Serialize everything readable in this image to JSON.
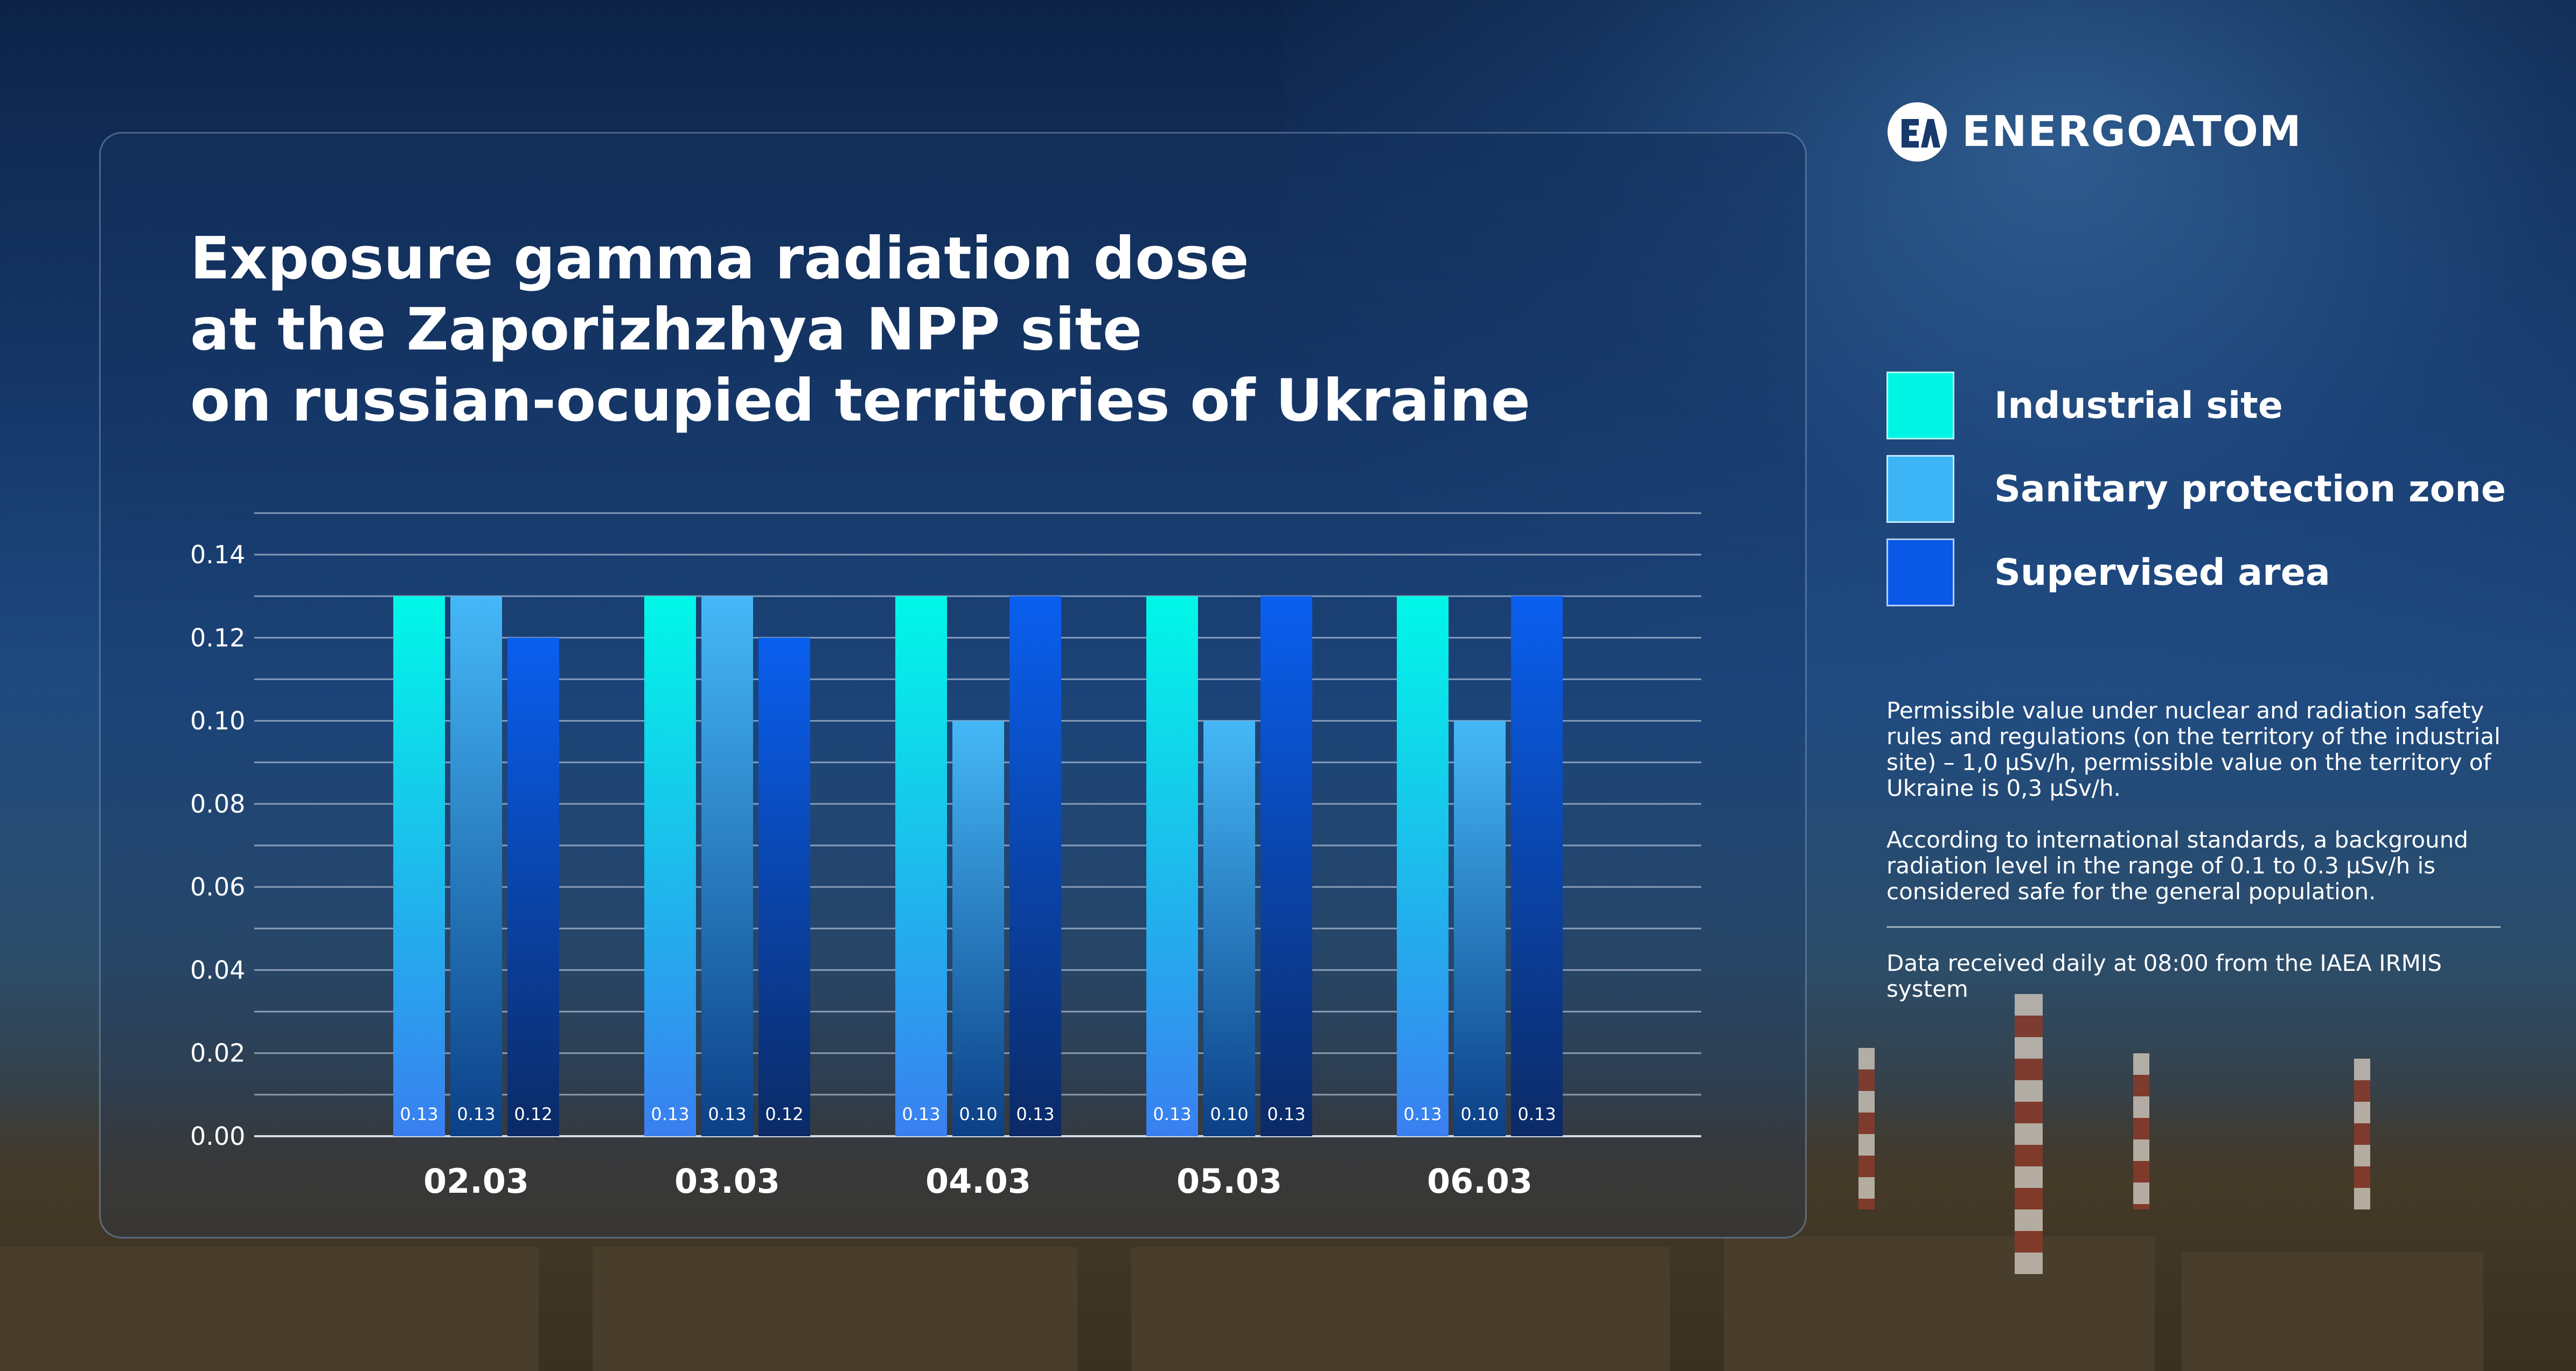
{
  "brand": {
    "name": "ENERGOATOM"
  },
  "title_lines": [
    "Exposure gamma radiation dose",
    "at the Zaporizhzhya NPP site",
    "on russian-ocupied territories of Ukraine"
  ],
  "legend": [
    {
      "label": "Industrial site",
      "color": "#00f5e4"
    },
    {
      "label": "Sanitary protection zone",
      "color": "#3cb4f5"
    },
    {
      "label": "Supervised area",
      "color": "#0a58e6"
    }
  ],
  "notes": {
    "permissible": "Permissible value under nuclear and radiation safety rules and regulations (on the territory of the industrial site) – 1,0 µSv/h, permissible value on the territory of Ukraine is 0,3 µSv/h.",
    "background": "According to international standards, a background radiation level in the range of 0.1 to 0.3 µSv/h is considered safe for the general population.",
    "source": "Data received daily at 08:00 from the IAEA IRMIS system"
  },
  "chart_data": {
    "type": "bar",
    "categories": [
      "02.03",
      "03.03",
      "04.03",
      "05.03",
      "06.03"
    ],
    "series": [
      {
        "name": "Industrial site",
        "values": [
          0.13,
          0.13,
          0.13,
          0.13,
          0.13
        ],
        "labels": [
          "0.13",
          "0.13",
          "0.13",
          "0.13",
          "0.13"
        ]
      },
      {
        "name": "Sanitary protection zone",
        "values": [
          0.13,
          0.13,
          0.1,
          0.1,
          0.1
        ],
        "labels": [
          "0.13",
          "0.13",
          "0.10",
          "0.10",
          "0.10"
        ]
      },
      {
        "name": "Supervised area",
        "values": [
          0.12,
          0.12,
          0.13,
          0.13,
          0.13
        ],
        "labels": [
          "0.12",
          "0.12",
          "0.13",
          "0.13",
          "0.13"
        ]
      }
    ],
    "yticks": [
      "0.00",
      "0.02",
      "0.04",
      "0.06",
      "0.08",
      "0.10",
      "0.12",
      "0.14"
    ],
    "ylim": [
      0,
      0.15
    ],
    "grid": true,
    "legend": "right",
    "colors": {
      "industrial_top": "#00f8e8",
      "industrial_bottom": "#3a7ff0",
      "sanitary_top": "#45b8f7",
      "sanitary_bottom": "#0c3f86",
      "supervised_top": "#0a5ff0",
      "supervised_bottom": "#0b2a66"
    }
  }
}
